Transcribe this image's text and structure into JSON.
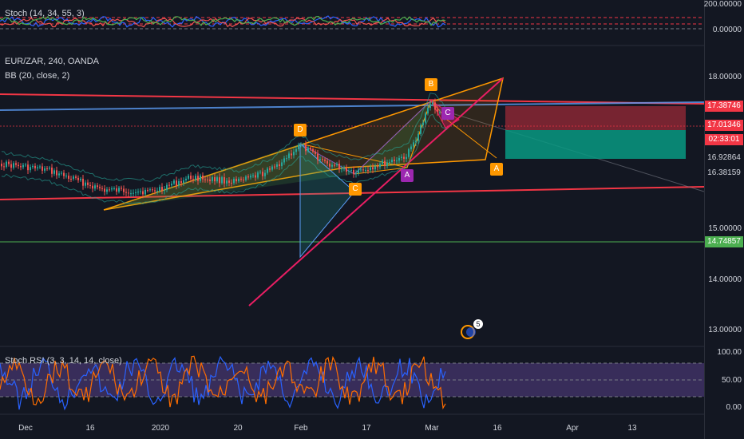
{
  "stoch_pane": {
    "legend": "Stoch (14, 34, 55, 3)",
    "axis_top": "200.00000",
    "axis_zero": "0.00000"
  },
  "main_pane": {
    "symbol": "EUR/ZAR, 240, OANDA",
    "bb_legend": "BB (20, close, 2)",
    "axis_labels": [
      "18.00000",
      "15.00000",
      "14.00000",
      "13.00000"
    ],
    "price_boxes": [
      {
        "value": "17.38746",
        "color": "#f23645"
      },
      {
        "value": "17.01346",
        "color": "#f23645"
      },
      {
        "value": "02:33:01",
        "color": "#f23645"
      },
      {
        "value": "16.92864",
        "color": "#131722"
      },
      {
        "value": "16.38159",
        "color": "#131722"
      },
      {
        "value": "14.74857",
        "color": "#4caf50"
      }
    ],
    "pattern_points": [
      "D",
      "B",
      "C",
      "A",
      "C",
      "A"
    ],
    "event_badge": "5"
  },
  "rsi_pane": {
    "legend": "Stoch RSI (3, 3, 14, 14, close)",
    "axis_labels": [
      "100.00",
      "50.00",
      "0.00"
    ]
  },
  "time_axis": [
    "Dec",
    "16",
    "2020",
    "20",
    "Feb",
    "17",
    "Mar",
    "16",
    "Apr",
    "13"
  ],
  "colors": {
    "background": "#131722",
    "up": "#26a69a",
    "down": "#ef5350",
    "pattern": "#ff9800",
    "short_stop": "#f23645",
    "target": "#089981",
    "rsi_band": "#7e57c2"
  }
}
